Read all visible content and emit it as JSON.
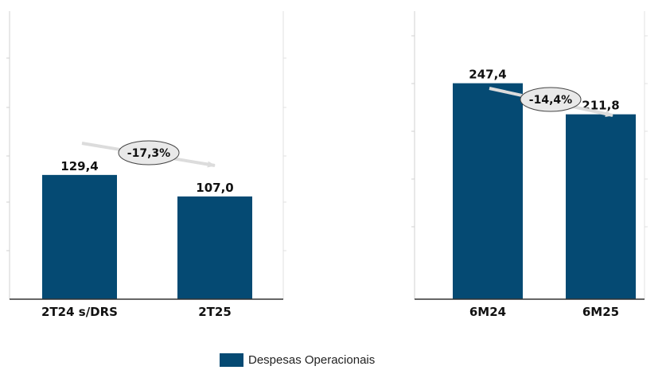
{
  "chart_data": [
    {
      "type": "bar",
      "categories": [
        "2T24 s/DRS",
        "2T25"
      ],
      "values": [
        129.4,
        107.0
      ],
      "value_labels": [
        "129,4",
        "107,0"
      ],
      "change_label": "-17,3%",
      "ylim": [
        0,
        300
      ],
      "grid": false
    },
    {
      "type": "bar",
      "categories": [
        "6M24",
        "6M25"
      ],
      "values": [
        247.4,
        211.8
      ],
      "value_labels": [
        "247,4",
        "211,8"
      ],
      "change_label": "-14,4%",
      "ylim": [
        0,
        330
      ],
      "grid": false
    }
  ],
  "legend": {
    "label": "Despesas Operacionais",
    "color": "#054a73",
    "position": "bottom-center"
  }
}
